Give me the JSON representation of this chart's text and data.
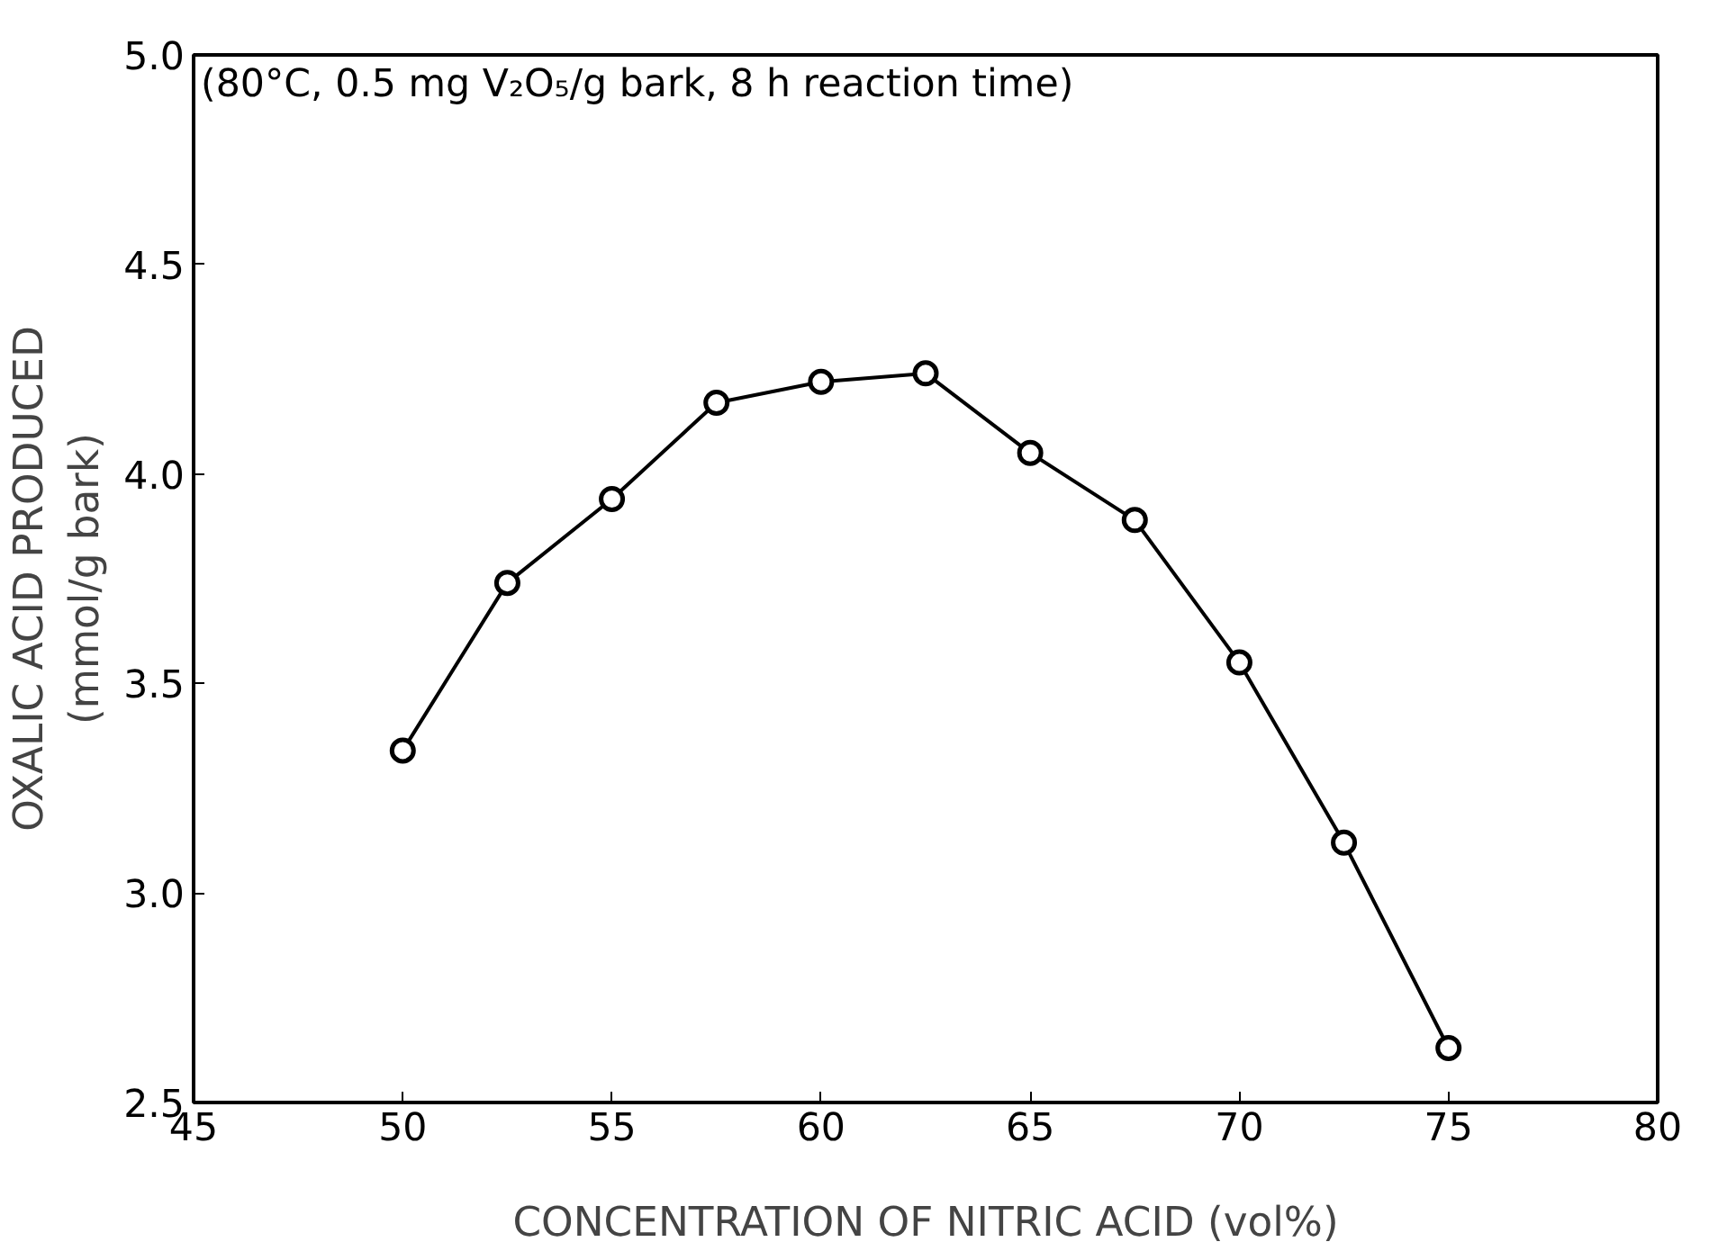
{
  "chart_data": {
    "type": "line",
    "xlabel": "CONCENTRATION OF NITRIC ACID (vol%)",
    "ylabel": "OXALIC ACID PRODUCED\n(mmol/g bark)",
    "annotations": [
      "(80°C, 0.5 mg V₂O₅/g bark, 8 h reaction time)"
    ],
    "x": [
      50,
      52.5,
      55,
      57.5,
      60,
      62.5,
      65,
      67.5,
      70,
      72.5,
      75
    ],
    "series": [
      {
        "color": "#000000",
        "values": [
          3.34,
          3.74,
          3.94,
          4.17,
          4.22,
          4.24,
          4.05,
          3.89,
          3.55,
          3.12,
          2.63
        ]
      }
    ],
    "xlim": [
      45,
      80
    ],
    "xticks": [
      45,
      50,
      55,
      60,
      65,
      70,
      75,
      80
    ],
    "ylim": [
      2.5,
      5.0
    ],
    "yticks": [
      {
        "value": 2.5,
        "label": "2.5"
      },
      {
        "value": 3.0,
        "label": "3.0"
      },
      {
        "value": 3.5,
        "label": "3.5"
      },
      {
        "value": 4.0,
        "label": "4.0"
      },
      {
        "value": 4.5,
        "label": "4.5"
      },
      {
        "value": 5.0,
        "label": "5.0"
      }
    ],
    "grid": false,
    "marker": "circle",
    "line_style": "solid"
  }
}
